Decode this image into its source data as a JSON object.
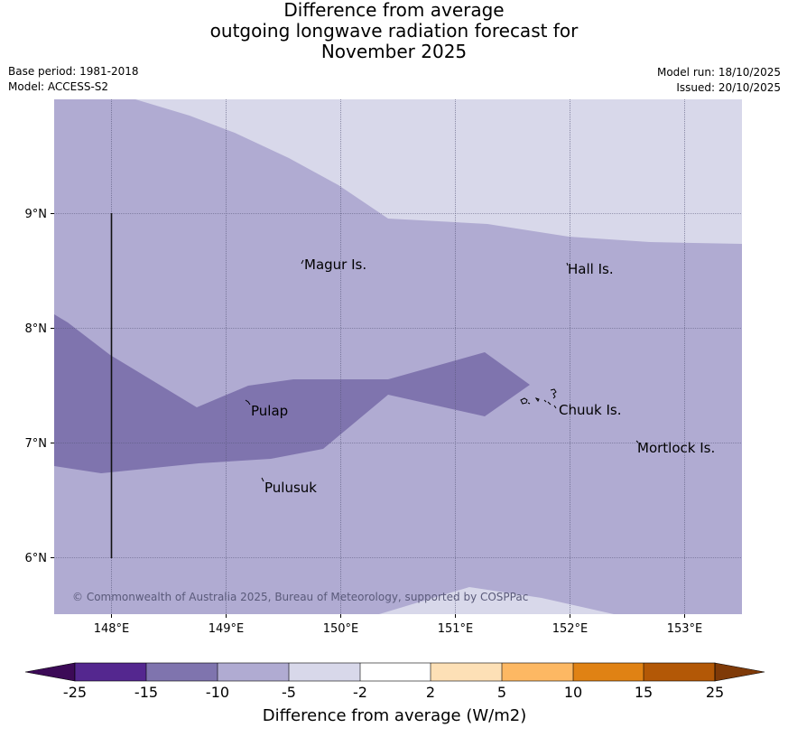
{
  "title": {
    "line1": "Difference from average",
    "line2": "outgoing longwave radiation forecast for",
    "line3": "November 2025"
  },
  "meta": {
    "base_period": "Base period: 1981-2018",
    "model": "Model: ACCESS-S2",
    "model_run": "Model run: 18/10/2025",
    "issued": "Issued: 20/10/2025"
  },
  "map": {
    "longitude_labels": [
      "148°E",
      "149°E",
      "150°E",
      "151°E",
      "152°E",
      "153°E"
    ],
    "latitude_labels": [
      "9°N",
      "8°N",
      "7°N",
      "6°N"
    ],
    "places": [
      "Magur Is.",
      "Hall Is.",
      "Pulap",
      "Chuuk Is.",
      "Mortlock Is.",
      "Pulusuk"
    ],
    "copyright": "© Commonwealth of Australia 2025, Bureau of Meteorology, supported by COSPPac",
    "colors": {
      "band_minus5_minus2": "#d8d8ea",
      "band_minus10_minus5": "#b0abd2",
      "band_minus15_minus10": "#7f74ae"
    }
  },
  "colorbar": {
    "ticks": [
      "-25",
      "-15",
      "-10",
      "-5",
      "-2",
      "2",
      "5",
      "10",
      "15",
      "25"
    ],
    "under_color": "#3c0a57",
    "over_color": "#7f3a08",
    "colors": [
      "#54278f",
      "#7f74ae",
      "#b0abd2",
      "#d8d8ea",
      "#ffffff",
      "#fde0b6",
      "#fdb863",
      "#e08214",
      "#b35806"
    ],
    "label": "Difference from average (W/m2)"
  }
}
